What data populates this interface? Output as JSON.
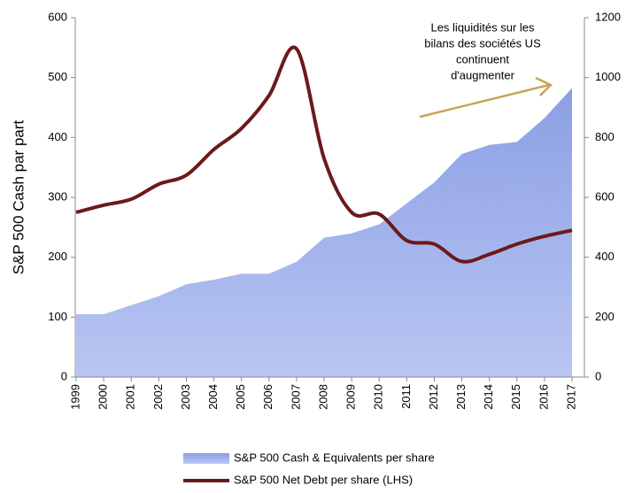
{
  "chart_data": {
    "type": "area_line",
    "y_label": "S&P 500 Cash par part",
    "annotation": [
      "Les liquidités sur les",
      "bilans des sociétés US",
      "continuent",
      "d'augmenter"
    ],
    "categories": [
      "1999",
      "2000",
      "2001",
      "2002",
      "2003",
      "2004",
      "2005",
      "2006",
      "2007",
      "2008",
      "2009",
      "2010",
      "2011",
      "2012",
      "2013",
      "2014",
      "2015",
      "2016",
      "2017"
    ],
    "series": [
      {
        "name": "S&P 500 Cash & Equivalents per share",
        "color": "#8fa3e6",
        "axis": "y2",
        "kind": "area",
        "values": [
          210,
          210,
          240,
          270,
          310,
          325,
          345,
          345,
          385,
          465,
          480,
          510,
          580,
          650,
          745,
          775,
          785,
          865,
          965
        ]
      },
      {
        "name": "S&P 500 Net Debt per share (LHS)",
        "color": "#6b1a1a",
        "axis": "y",
        "kind": "line",
        "values": [
          275,
          287,
          297,
          322,
          337,
          380,
          415,
          470,
          548,
          365,
          275,
          272,
          228,
          222,
          193,
          205,
          222,
          235,
          245
        ]
      }
    ],
    "ylim": [
      0,
      600
    ],
    "yticks": [
      0,
      100,
      200,
      300,
      400,
      500,
      600
    ],
    "y2lim": [
      0,
      1200
    ],
    "y2ticks": [
      0,
      200,
      400,
      600,
      800,
      1000,
      1200
    ],
    "legend": "bottom"
  }
}
